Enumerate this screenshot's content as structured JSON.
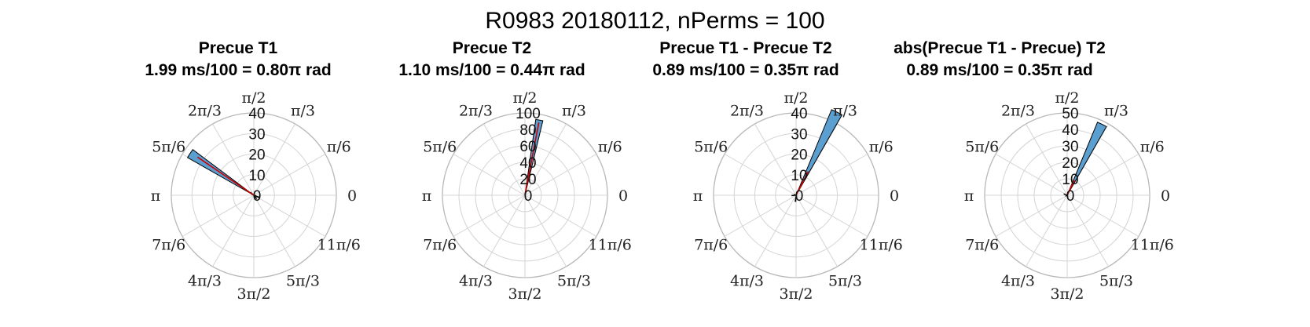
{
  "title": "R0983 20180112, nPerms = 100",
  "colors": {
    "bar_fill": "#5b9fd1",
    "bar_edge": "#000000",
    "mean_line": "#cc0000",
    "grid": "#d4d4d4",
    "outer": "#b8b8b8"
  },
  "angle_tick_labels": [
    "0",
    "π/6",
    "π/3",
    "π/2",
    "2π/3",
    "5π/6",
    "π",
    "7π/6",
    "4π/3",
    "3π/2",
    "5π/3",
    "11π/6"
  ],
  "chart_data": [
    {
      "type": "polar-histogram",
      "title": "Precue T1",
      "subtitle": "1.99 ms/100 = 0.80π rad",
      "rlim": [
        0,
        40
      ],
      "r_ticks": [
        0,
        10,
        20,
        30,
        40
      ],
      "bars": [
        {
          "theta_start": 0.795,
          "theta_end": 0.835,
          "count": 37
        },
        {
          "theta_start": 0.755,
          "theta_end": 0.795,
          "count": 2
        },
        {
          "theta_start": 0.835,
          "theta_end": 0.875,
          "count": 1
        },
        {
          "theta_start": 1.7,
          "theta_end": 1.74,
          "count": 2
        },
        {
          "theta_start": 1.86,
          "theta_end": 1.9,
          "count": 3
        },
        {
          "theta_start": 1.92,
          "theta_end": 1.96,
          "count": 1
        }
      ],
      "mean_vector": {
        "theta": 0.81,
        "length": 33
      }
    },
    {
      "type": "polar-histogram",
      "title": "Precue T2",
      "subtitle": "1.10 ms/100 = 0.44π rad",
      "rlim": [
        0,
        100
      ],
      "r_ticks": [
        0,
        20,
        40,
        60,
        80,
        100
      ],
      "bars": [
        {
          "theta_start": 0.425,
          "theta_end": 0.455,
          "count": 93
        },
        {
          "theta_start": 0.395,
          "theta_end": 0.425,
          "count": 4
        },
        {
          "theta_start": 0.455,
          "theta_end": 0.485,
          "count": 3
        }
      ],
      "mean_vector": {
        "theta": 0.44,
        "length": 90
      }
    },
    {
      "type": "polar-histogram",
      "title": "Precue T1 - Precue T2",
      "subtitle": "0.89 ms/100 = 0.35π rad",
      "rlim": [
        0,
        40
      ],
      "r_ticks": [
        0,
        10,
        20,
        30,
        40
      ],
      "bars": [
        {
          "theta_start": 0.335,
          "theta_end": 0.375,
          "count": 45
        },
        {
          "theta_start": 1.45,
          "theta_end": 1.49,
          "count": 3
        },
        {
          "theta_start": 1.0,
          "theta_end": 1.04,
          "count": 2
        },
        {
          "theta_start": 0.88,
          "theta_end": 0.92,
          "count": 1
        }
      ],
      "mean_vector": {
        "theta": 0.35,
        "length": 13
      }
    },
    {
      "type": "polar-histogram",
      "title": "abs(Precue T1 - Precue) T2",
      "subtitle": "0.89 ms/100 = 0.35π rad",
      "rlim": [
        0,
        50
      ],
      "r_ticks": [
        0,
        10,
        20,
        30,
        40,
        50
      ],
      "bars": [
        {
          "theta_start": 0.335,
          "theta_end": 0.375,
          "count": 48
        },
        {
          "theta_start": 0.86,
          "theta_end": 0.9,
          "count": 2
        },
        {
          "theta_start": 1.15,
          "theta_end": 1.19,
          "count": 1
        }
      ],
      "mean_vector": {
        "theta": 0.36,
        "length": 10
      }
    }
  ]
}
